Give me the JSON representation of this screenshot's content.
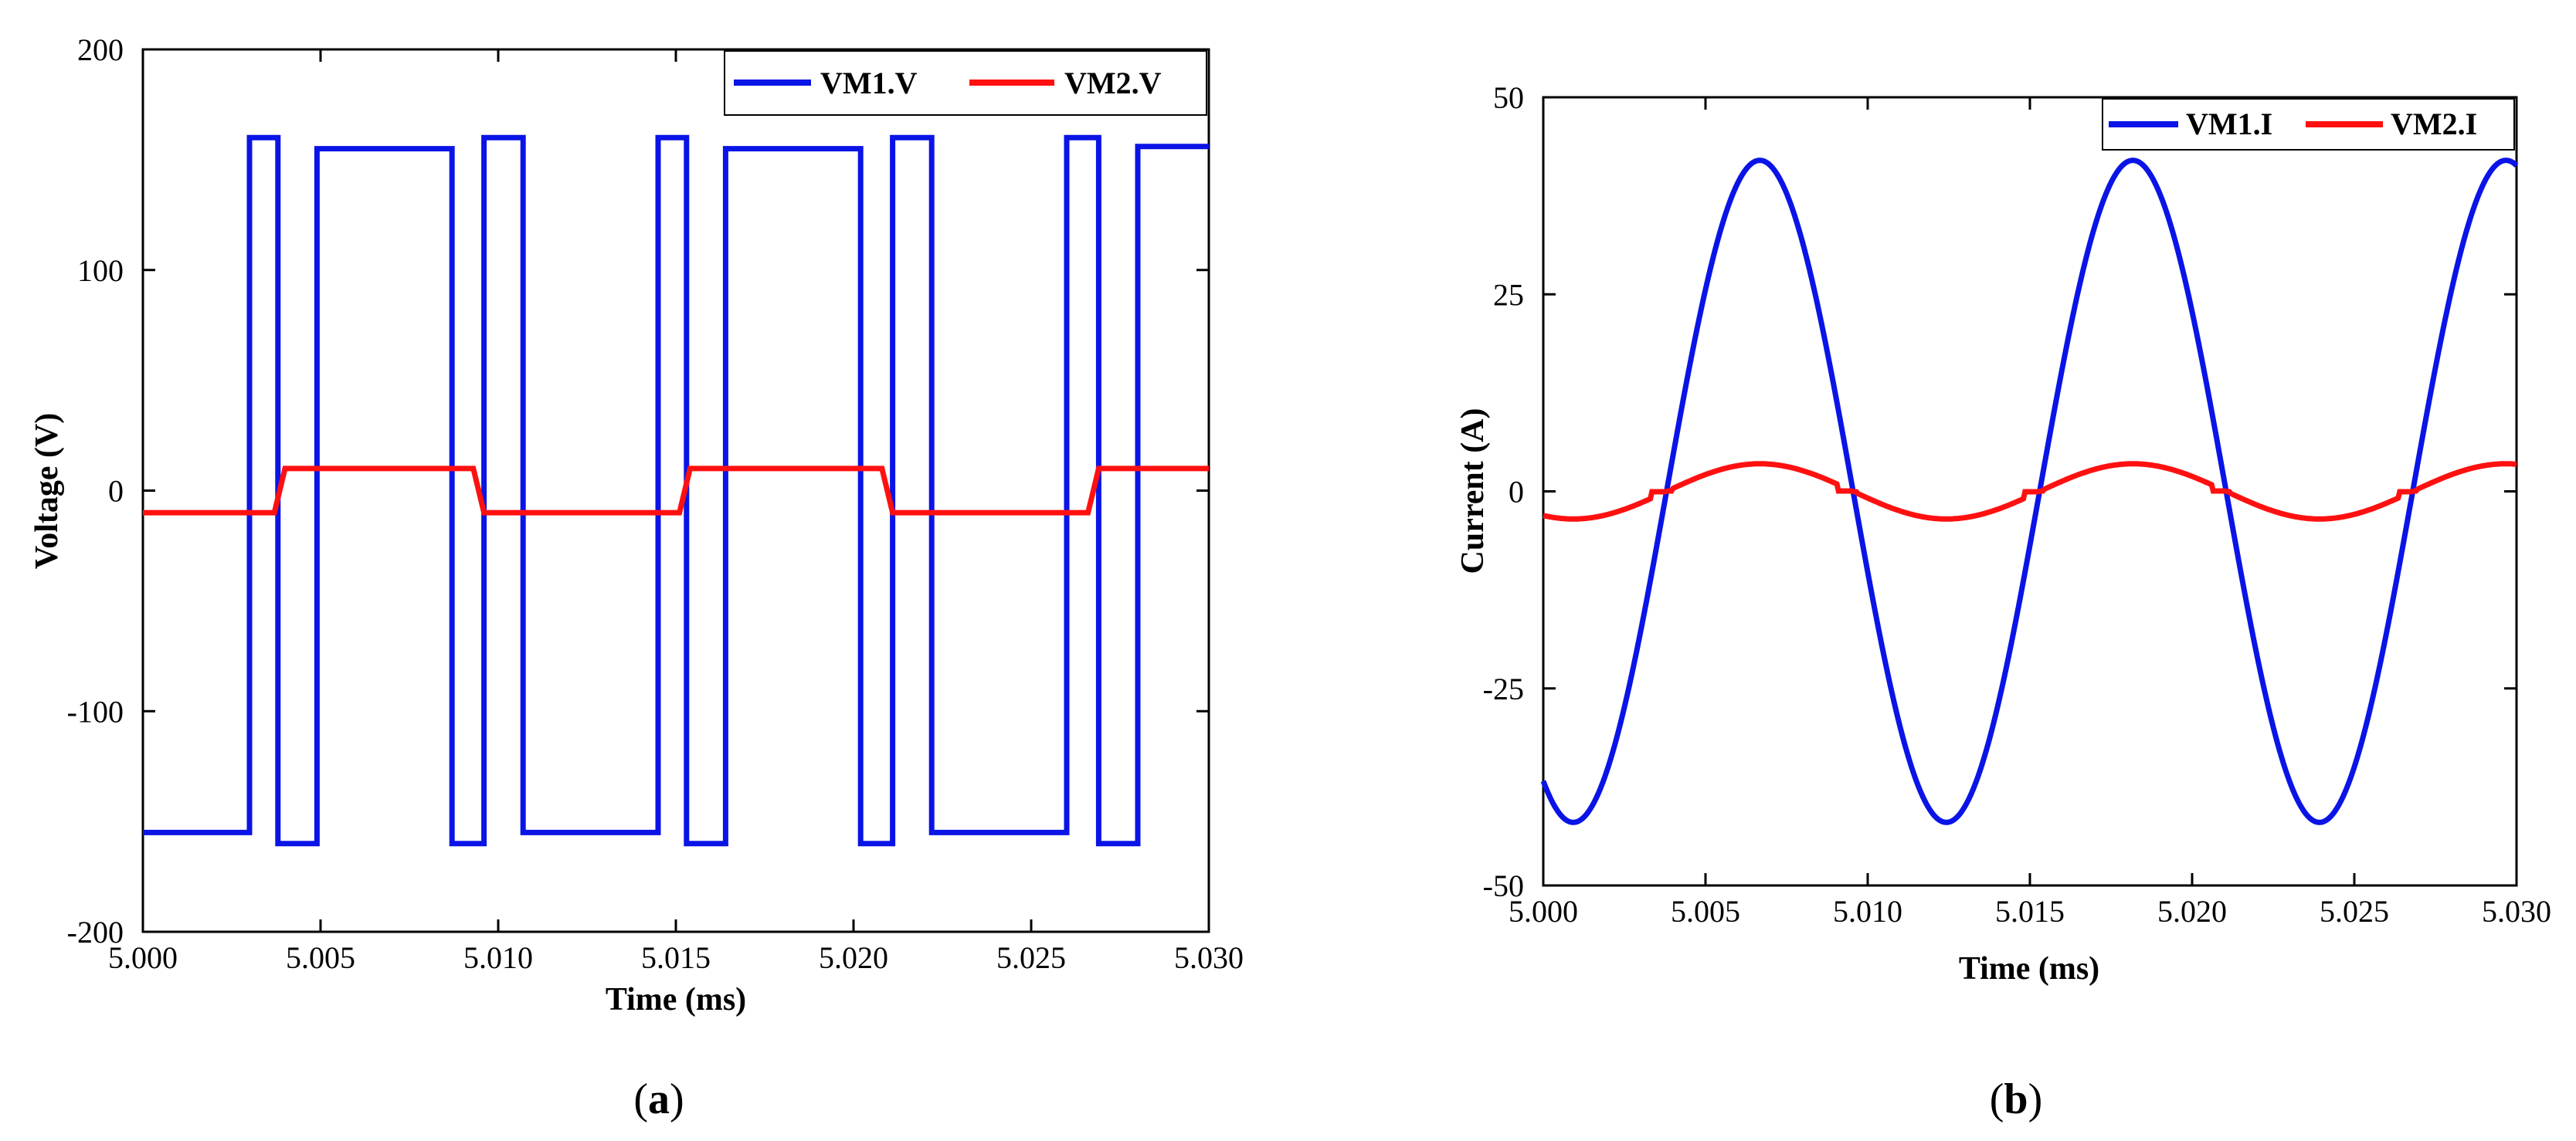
{
  "colors": {
    "series1": "#0a14e6",
    "series2": "#ff1010",
    "axis": "#000000"
  },
  "chart_data": [
    {
      "id": "a",
      "type": "line",
      "panel_label": "a",
      "xlabel": "Time (ms)",
      "ylabel": "Voltage (V)",
      "xlim": [
        5.0,
        5.03
      ],
      "ylim": [
        -200,
        200
      ],
      "xticks": [
        5.0,
        5.005,
        5.01,
        5.015,
        5.02,
        5.025,
        5.03
      ],
      "xtick_labels": [
        "5.000",
        "5.005",
        "5.010",
        "5.015",
        "5.020",
        "5.025",
        "5.030"
      ],
      "yticks": [
        -200,
        -100,
        0,
        100,
        200
      ],
      "ytick_labels": [
        "-200",
        "-100",
        "0",
        "100",
        "200"
      ],
      "legend": [
        "VM1.V",
        "VM2.V"
      ],
      "legend_position": "top-right",
      "series": [
        {
          "name": "VM1.V",
          "x": [
            5.0,
            5.003,
            5.003,
            5.0038,
            5.0038,
            5.0049,
            5.0049,
            5.0087,
            5.0087,
            5.0096,
            5.0096,
            5.0107,
            5.0107,
            5.0145,
            5.0145,
            5.0153,
            5.0153,
            5.0164,
            5.0164,
            5.0202,
            5.0202,
            5.0211,
            5.0211,
            5.0222,
            5.0222,
            5.026,
            5.026,
            5.0269,
            5.0269,
            5.028,
            5.028,
            5.03
          ],
          "y": [
            -155,
            -155,
            160,
            160,
            -160,
            -160,
            155,
            155,
            -160,
            -160,
            160,
            160,
            -155,
            -155,
            160,
            160,
            -160,
            -160,
            155,
            155,
            -160,
            -160,
            160,
            160,
            -155,
            -155,
            160,
            160,
            -160,
            -160,
            156,
            156
          ]
        },
        {
          "name": "VM2.V",
          "x": [
            5.0,
            5.0037,
            5.004,
            5.0093,
            5.0096,
            5.0151,
            5.0154,
            5.0208,
            5.0211,
            5.0266,
            5.0269,
            5.03
          ],
          "y": [
            -10,
            -10,
            10,
            10,
            -10,
            -10,
            10,
            10,
            -10,
            -10,
            10,
            10
          ]
        }
      ]
    },
    {
      "id": "b",
      "type": "line",
      "panel_label": "b",
      "xlabel": "Time (ms)",
      "ylabel": "Current (A)",
      "xlim": [
        5.0,
        5.03
      ],
      "ylim": [
        -50,
        50
      ],
      "xticks": [
        5.0,
        5.005,
        5.01,
        5.015,
        5.02,
        5.025,
        5.03
      ],
      "xtick_labels": [
        "5.000",
        "5.005",
        "5.010",
        "5.015",
        "5.020",
        "5.025",
        "5.030"
      ],
      "yticks": [
        -50,
        -25,
        0,
        25,
        50
      ],
      "ytick_labels": [
        "-50",
        "-25",
        "0",
        "25",
        "50"
      ],
      "legend": [
        "VM1.I",
        "VM2.I"
      ],
      "legend_position": "top-right",
      "series": [
        {
          "name": "VM1.I",
          "description": "sinusoid, amplitude 42 A, period 0.0115 ms, zero-crossing rising at 5.0038 ms",
          "x": [
            5.0,
            5.001,
            5.0024,
            5.0038,
            5.0053,
            5.0067,
            5.0081,
            5.0096,
            5.011,
            5.0124,
            5.0139,
            5.0153,
            5.0167,
            5.0182,
            5.0196,
            5.021,
            5.0225,
            5.0239,
            5.0253,
            5.0268,
            5.0282,
            5.0296,
            5.03
          ],
          "y": [
            -36,
            -42,
            -30,
            0,
            30,
            42,
            30,
            0,
            -30,
            -42,
            -30,
            0,
            30,
            42,
            30,
            0,
            -30,
            -42,
            -30,
            0,
            30,
            42,
            41
          ]
        },
        {
          "name": "VM2.I",
          "description": "sinusoid, amplitude 3.5 A, in phase with VM1.I, flat steps near each zero crossing",
          "x": [
            5.0,
            5.001,
            5.0024,
            5.0038,
            5.0053,
            5.0067,
            5.0081,
            5.0096,
            5.011,
            5.0124,
            5.0139,
            5.0153,
            5.0167,
            5.0182,
            5.0196,
            5.021,
            5.0225,
            5.0239,
            5.0253,
            5.0268,
            5.0282,
            5.0296,
            5.03
          ],
          "y": [
            -3,
            -3.5,
            -2.5,
            0,
            2.5,
            3.5,
            2.5,
            0,
            -2.5,
            -3.5,
            -2.5,
            0,
            2.5,
            3.5,
            2.5,
            0,
            -2.5,
            -3.5,
            -2.5,
            0,
            2.5,
            3.5,
            3.4
          ]
        }
      ]
    }
  ]
}
